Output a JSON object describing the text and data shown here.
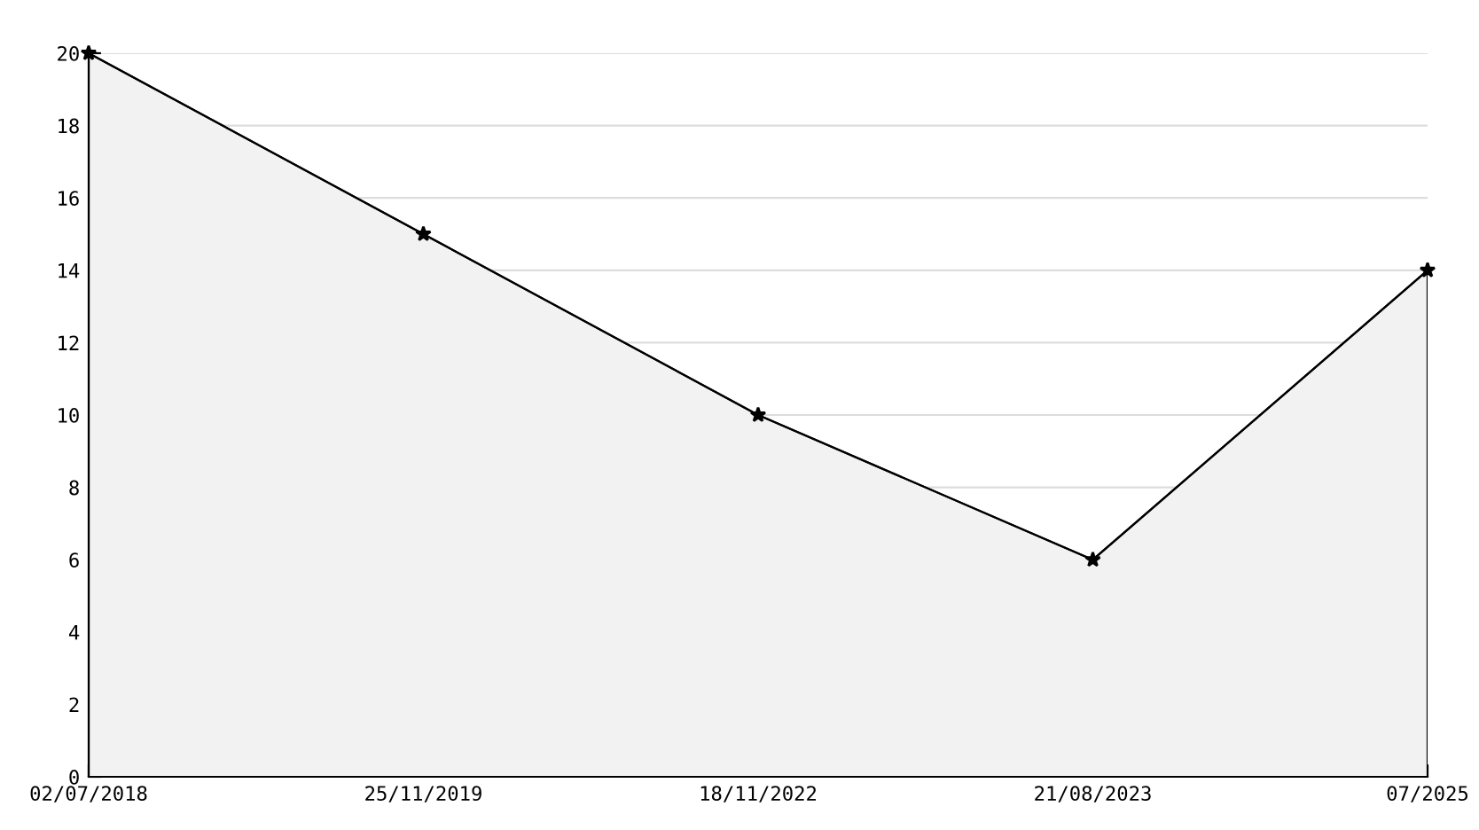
{
  "chart_data": {
    "type": "area",
    "categories": [
      "02/07/2018",
      "25/11/2019",
      "18/11/2022",
      "21/08/2023",
      "07/2025"
    ],
    "series": [
      {
        "color": "#000000",
        "values": [
          20,
          15,
          10,
          6,
          14
        ]
      }
    ],
    "ylim": [
      0,
      20
    ],
    "yticks": [
      0,
      2,
      4,
      6,
      8,
      10,
      12,
      14,
      16,
      18,
      20
    ],
    "grid": "y",
    "marker": "star",
    "line_style": "solid",
    "legend": false
  }
}
